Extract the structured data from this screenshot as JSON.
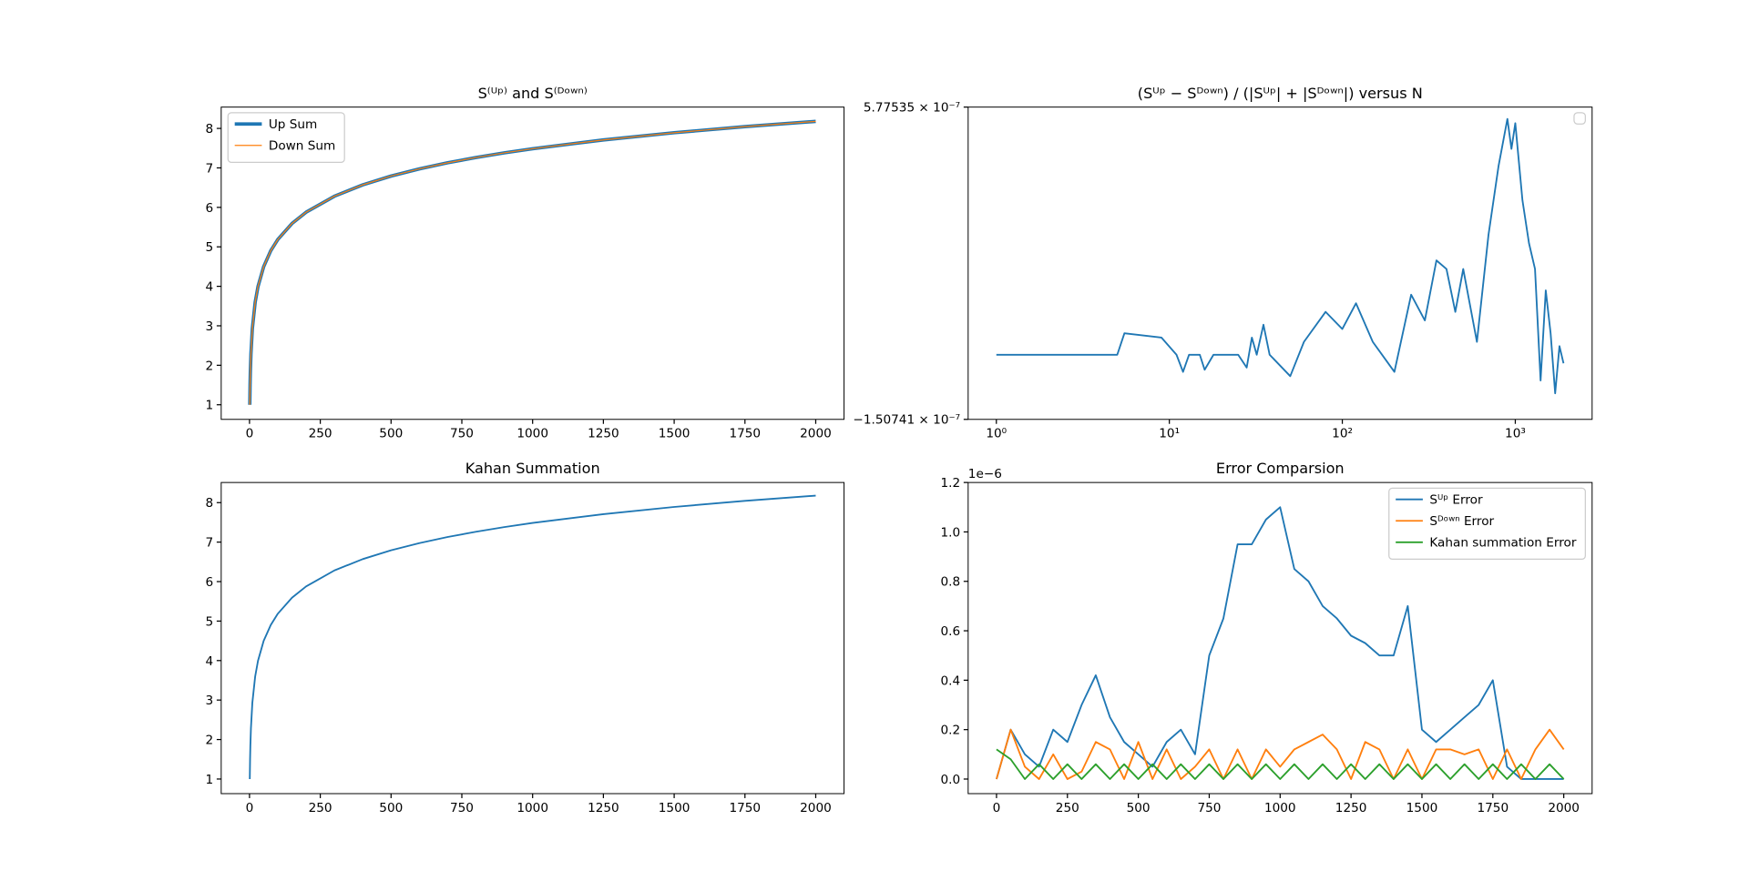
{
  "chart_data": [
    {
      "type": "line",
      "title": "S⁽ᵁᵖ⁾ and S⁽ᴰᵒʷⁿ⁾",
      "legend": "upper left",
      "xlim": [
        -100,
        2100
      ],
      "ylim": [
        0.63,
        8.54
      ],
      "xticks": [
        0,
        250,
        500,
        750,
        1000,
        1250,
        1500,
        1750,
        2000
      ],
      "yticks": [
        1,
        2,
        3,
        4,
        5,
        6,
        7,
        8
      ],
      "x": [
        1,
        2,
        3,
        5,
        10,
        20,
        30,
        50,
        75,
        100,
        150,
        200,
        300,
        400,
        500,
        600,
        700,
        800,
        900,
        1000,
        1250,
        1500,
        1750,
        2000
      ],
      "series": [
        {
          "name": "Up Sum",
          "color": "#1f77b4",
          "width": 3,
          "values": [
            1,
            1.5,
            1.833,
            2.283,
            2.929,
            3.598,
            3.995,
            4.499,
            4.901,
            5.187,
            5.591,
            5.878,
            6.283,
            6.57,
            6.793,
            6.975,
            7.13,
            7.263,
            7.381,
            7.485,
            7.708,
            7.891,
            8.045,
            8.178
          ]
        },
        {
          "name": "Down Sum",
          "color": "#ff7f0e",
          "width": 1,
          "values": [
            1,
            1.5,
            1.833,
            2.283,
            2.929,
            3.598,
            3.995,
            4.499,
            4.901,
            5.187,
            5.591,
            5.878,
            6.283,
            6.57,
            6.793,
            6.975,
            7.13,
            7.263,
            7.381,
            7.485,
            7.708,
            7.891,
            8.045,
            8.178
          ]
        }
      ]
    },
    {
      "type": "line",
      "title": "(Sᵁᵖ − Sᴰᵒʷⁿ) / (|Sᵁᵖ| + |Sᴰᵒʷⁿ|) versus N",
      "legend": "upper right",
      "log_x": true,
      "xlim": [
        0.687,
        2780
      ],
      "ylim": [
        -1.50741e-07,
        5.77535e-07
      ],
      "xticks": [
        {
          "value": 1,
          "label": "10⁰"
        },
        {
          "value": 10,
          "label": "10¹"
        },
        {
          "value": 100,
          "label": "10²"
        },
        {
          "value": 1000,
          "label": "10³"
        }
      ],
      "yticks": [
        {
          "value": -1.50741e-07,
          "label": "−1.50741 × 10⁻⁷"
        },
        {
          "value": 5.77535e-07,
          "label": "5.77535 × 10⁻⁷"
        }
      ],
      "x": [
        1,
        5,
        5.5,
        9,
        11,
        12,
        13,
        15,
        16,
        18,
        25,
        28,
        30,
        32,
        35,
        38,
        50,
        60,
        80,
        100,
        120,
        150,
        200,
        250,
        300,
        350,
        400,
        450,
        500,
        600,
        700,
        800,
        900,
        950,
        1000,
        1100,
        1200,
        1300,
        1400,
        1500,
        1600,
        1700,
        1800,
        1900
      ],
      "series": [
        {
          "color": "#1f77b4",
          "width": 1.5,
          "values": [
            0,
            0,
            5e-08,
            4e-08,
            0,
            -4e-08,
            0,
            0,
            -3.5e-08,
            0,
            0,
            -3e-08,
            4e-08,
            0,
            7e-08,
            0,
            -5e-08,
            3e-08,
            1e-07,
            6e-08,
            1.2e-07,
            3e-08,
            -4e-08,
            1.4e-07,
            8e-08,
            2.2e-07,
            2e-07,
            1e-07,
            2e-07,
            3e-08,
            2.8e-07,
            4.4e-07,
            5.5e-07,
            4.8e-07,
            5.4e-07,
            3.6e-07,
            2.6e-07,
            2e-07,
            -6e-08,
            1.5e-07,
            5e-08,
            -9e-08,
            2e-08,
            -2e-08
          ]
        }
      ]
    },
    {
      "type": "line",
      "title": "Kahan Summation",
      "xlim": [
        -100,
        2100
      ],
      "ylim": [
        0.63,
        8.51
      ],
      "xticks": [
        0,
        250,
        500,
        750,
        1000,
        1250,
        1500,
        1750,
        2000
      ],
      "yticks": [
        1,
        2,
        3,
        4,
        5,
        6,
        7,
        8
      ],
      "x": [
        1,
        2,
        3,
        5,
        10,
        20,
        30,
        50,
        75,
        100,
        150,
        200,
        300,
        400,
        500,
        600,
        700,
        800,
        900,
        1000,
        1250,
        1500,
        1750,
        2000
      ],
      "series": [
        {
          "color": "#1f77b4",
          "width": 1.5,
          "values": [
            1,
            1.5,
            1.833,
            2.283,
            2.929,
            3.598,
            3.995,
            4.499,
            4.901,
            5.187,
            5.591,
            5.878,
            6.283,
            6.57,
            6.793,
            6.975,
            7.13,
            7.263,
            7.381,
            7.485,
            7.708,
            7.891,
            8.045,
            8.178
          ]
        }
      ]
    },
    {
      "type": "line",
      "title": "Error Comparsion",
      "legend": "upper right",
      "y_offset_label": "1e−6",
      "xlim": [
        -100,
        2100
      ],
      "ylim": [
        -5.9e-08,
        1.2e-06
      ],
      "xticks": [
        0,
        250,
        500,
        750,
        1000,
        1250,
        1500,
        1750,
        2000
      ],
      "yticks": [
        {
          "value": 0,
          "label": "0.0"
        },
        {
          "value": 2e-07,
          "label": "0.2"
        },
        {
          "value": 4e-07,
          "label": "0.4"
        },
        {
          "value": 6e-07,
          "label": "0.6"
        },
        {
          "value": 8e-07,
          "label": "0.8"
        },
        {
          "value": 1e-06,
          "label": "1.0"
        },
        {
          "value": 1.2e-06,
          "label": "1.2"
        }
      ],
      "x": [
        0,
        50,
        100,
        150,
        200,
        250,
        300,
        350,
        400,
        450,
        500,
        550,
        600,
        650,
        700,
        750,
        800,
        850,
        900,
        950,
        1000,
        1050,
        1100,
        1150,
        1200,
        1250,
        1300,
        1350,
        1400,
        1450,
        1500,
        1550,
        1600,
        1650,
        1700,
        1750,
        1800,
        1850,
        1900,
        1950,
        2000
      ],
      "series": [
        {
          "name": "Sᵁᵖ Error",
          "color": "#1f77b4",
          "width": 1.5,
          "values": [
            0,
            2e-07,
            1e-07,
            5e-08,
            2e-07,
            1.5e-07,
            3e-07,
            4.2e-07,
            2.5e-07,
            1.5e-07,
            1e-07,
            5e-08,
            1.5e-07,
            2e-07,
            1e-07,
            5e-07,
            6.5e-07,
            9.5e-07,
            9.5e-07,
            1.05e-06,
            1.1e-06,
            8.5e-07,
            8e-07,
            7e-07,
            6.5e-07,
            5.8e-07,
            5.5e-07,
            5e-07,
            5e-07,
            7e-07,
            2e-07,
            1.5e-07,
            2e-07,
            2.5e-07,
            3e-07,
            4e-07,
            5e-08,
            0,
            0,
            0,
            0
          ]
        },
        {
          "name": "Sᴰᵒʷⁿ Error",
          "color": "#ff7f0e",
          "width": 1.5,
          "values": [
            0,
            2e-07,
            5e-08,
            0,
            1e-07,
            0,
            3e-08,
            1.5e-07,
            1.2e-07,
            0,
            1.5e-07,
            0,
            1.2e-07,
            0,
            5e-08,
            1.2e-07,
            0,
            1.2e-07,
            0,
            1.2e-07,
            5e-08,
            1.2e-07,
            1.5e-07,
            1.8e-07,
            1.2e-07,
            0,
            1.5e-07,
            1.2e-07,
            0,
            1.2e-07,
            0,
            1.2e-07,
            1.2e-07,
            1e-07,
            1.2e-07,
            0,
            1.2e-07,
            0,
            1.2e-07,
            2e-07,
            1.2e-07
          ]
        },
        {
          "name": "Kahan summation Error",
          "color": "#2ca02c",
          "width": 1.5,
          "values": [
            1.2e-07,
            8e-08,
            0,
            6e-08,
            0,
            6e-08,
            0,
            6e-08,
            0,
            6e-08,
            0,
            6e-08,
            0,
            6e-08,
            0,
            6e-08,
            0,
            6e-08,
            0,
            6e-08,
            0,
            6e-08,
            0,
            6e-08,
            0,
            6e-08,
            0,
            6e-08,
            0,
            6e-08,
            0,
            6e-08,
            0,
            6e-08,
            0,
            6e-08,
            0,
            6e-08,
            0,
            6e-08,
            0
          ]
        }
      ]
    }
  ]
}
